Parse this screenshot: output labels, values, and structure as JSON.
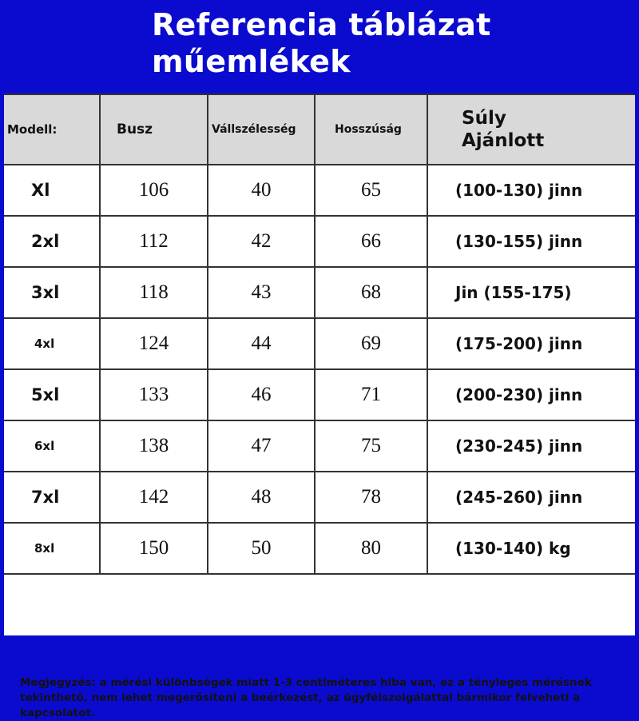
{
  "title": {
    "line1": "Referencia táblázat",
    "line2": "műemlékek"
  },
  "colors": {
    "frame": "#0b0bd0",
    "header_bg": "#d9d9d9"
  },
  "table": {
    "headers": {
      "model": "Modell:",
      "bust": "Busz",
      "shoulder": "Vállszélesség",
      "length": "Hosszúság",
      "weight_line1": "Súly",
      "weight_line2": "Ajánlott"
    },
    "rows": [
      {
        "size": "Xl",
        "bust": "106",
        "shoulder": "40",
        "length": "65",
        "weight": "(100-130) jinn"
      },
      {
        "size": "2xl",
        "bust": "112",
        "shoulder": "42",
        "length": "66",
        "weight": "(130-155) jinn"
      },
      {
        "size": "3xl",
        "bust": "118",
        "shoulder": "43",
        "length": "68",
        "weight": "Jin (155-175)"
      },
      {
        "size": "4xl",
        "bust": "124",
        "shoulder": "44",
        "length": "69",
        "weight": "(175-200) jinn"
      },
      {
        "size": "5xl",
        "bust": "133",
        "shoulder": "46",
        "length": "71",
        "weight": "(200-230) jinn"
      },
      {
        "size": "6xl",
        "bust": "138",
        "shoulder": "47",
        "length": "75",
        "weight": "(230-245) jinn"
      },
      {
        "size": "7xl",
        "bust": "142",
        "shoulder": "48",
        "length": "78",
        "weight": "(245-260) jinn"
      },
      {
        "size": "8xl",
        "bust": "150",
        "shoulder": "50",
        "length": "80",
        "weight": "(130-140) kg"
      }
    ]
  },
  "note": "Megjegyzés: a mérési különbségek miatt 1-3 centiméteres hiba van, ez a tényleges mérésnek tekinthető, nem lehet megerősíteni a beérkezést, az ügyfélszolgálattal bármikor felveheti a kapcsolatot."
}
